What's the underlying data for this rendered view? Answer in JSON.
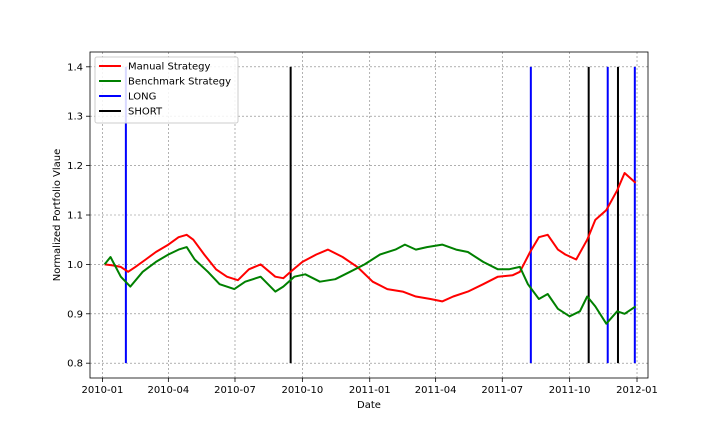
{
  "chart_data": {
    "type": "line",
    "title": "",
    "xlabel": "Date",
    "ylabel": "Normalized Portfolio Vlaue",
    "xlim": [
      "2009-12-15",
      "2012-01-16"
    ],
    "ylim": [
      0.77,
      1.43
    ],
    "xticks": [
      {
        "date": "2010-01-01",
        "label": "2010-01"
      },
      {
        "date": "2010-04-01",
        "label": "2010-04"
      },
      {
        "date": "2010-07-01",
        "label": "2010-07"
      },
      {
        "date": "2010-10-01",
        "label": "2010-10"
      },
      {
        "date": "2011-01-01",
        "label": "2011-01"
      },
      {
        "date": "2011-04-01",
        "label": "2011-04"
      },
      {
        "date": "2011-07-01",
        "label": "2011-07"
      },
      {
        "date": "2011-10-01",
        "label": "2011-10"
      },
      {
        "date": "2012-01-01",
        "label": "2012-01"
      }
    ],
    "yticks": [
      {
        "value": 0.8,
        "label": "0.8"
      },
      {
        "value": 0.9,
        "label": "0.9"
      },
      {
        "value": 1.0,
        "label": "1.0"
      },
      {
        "value": 1.1,
        "label": "1.1"
      },
      {
        "value": 1.2,
        "label": "1.2"
      },
      {
        "value": 1.3,
        "label": "1.3"
      },
      {
        "value": 1.4,
        "label": "1.4"
      }
    ],
    "grid": true,
    "legend_position": "top-left",
    "series": [
      {
        "name": "Manual Strategy",
        "color": "#ff0000",
        "points": [
          [
            "2010-01-04",
            1.0
          ],
          [
            "2010-01-15",
            0.998
          ],
          [
            "2010-01-26",
            0.995
          ],
          [
            "2010-02-05",
            0.985
          ],
          [
            "2010-02-15",
            0.995
          ],
          [
            "2010-03-01",
            1.01
          ],
          [
            "2010-03-15",
            1.025
          ],
          [
            "2010-04-01",
            1.04
          ],
          [
            "2010-04-15",
            1.055
          ],
          [
            "2010-04-26",
            1.06
          ],
          [
            "2010-05-05",
            1.05
          ],
          [
            "2010-05-20",
            1.02
          ],
          [
            "2010-06-05",
            0.99
          ],
          [
            "2010-06-20",
            0.975
          ],
          [
            "2010-07-05",
            0.968
          ],
          [
            "2010-07-20",
            0.99
          ],
          [
            "2010-08-05",
            1.0
          ],
          [
            "2010-08-25",
            0.975
          ],
          [
            "2010-09-05",
            0.972
          ],
          [
            "2010-09-15",
            0.985
          ],
          [
            "2010-10-01",
            1.005
          ],
          [
            "2010-10-20",
            1.02
          ],
          [
            "2010-11-05",
            1.03
          ],
          [
            "2010-11-25",
            1.015
          ],
          [
            "2010-12-15",
            0.995
          ],
          [
            "2011-01-05",
            0.965
          ],
          [
            "2011-01-25",
            0.95
          ],
          [
            "2011-02-15",
            0.945
          ],
          [
            "2011-03-05",
            0.935
          ],
          [
            "2011-03-25",
            0.93
          ],
          [
            "2011-04-10",
            0.925
          ],
          [
            "2011-04-25",
            0.935
          ],
          [
            "2011-05-15",
            0.945
          ],
          [
            "2011-06-05",
            0.96
          ],
          [
            "2011-06-25",
            0.975
          ],
          [
            "2011-07-15",
            0.978
          ],
          [
            "2011-07-25",
            0.985
          ],
          [
            "2011-08-08",
            1.025
          ],
          [
            "2011-08-20",
            1.055
          ],
          [
            "2011-09-01",
            1.06
          ],
          [
            "2011-09-15",
            1.03
          ],
          [
            "2011-09-25",
            1.02
          ],
          [
            "2011-10-10",
            1.01
          ],
          [
            "2011-10-25",
            1.05
          ],
          [
            "2011-11-05",
            1.09
          ],
          [
            "2011-11-20",
            1.11
          ],
          [
            "2011-12-05",
            1.15
          ],
          [
            "2011-12-15",
            1.185
          ],
          [
            "2011-12-30",
            1.165
          ]
        ]
      },
      {
        "name": "Benchmark Strategy",
        "color": "#008000",
        "points": [
          [
            "2010-01-04",
            1.0
          ],
          [
            "2010-01-12",
            1.015
          ],
          [
            "2010-01-26",
            0.975
          ],
          [
            "2010-02-08",
            0.955
          ],
          [
            "2010-02-25",
            0.985
          ],
          [
            "2010-03-15",
            1.005
          ],
          [
            "2010-04-01",
            1.02
          ],
          [
            "2010-04-15",
            1.03
          ],
          [
            "2010-04-26",
            1.035
          ],
          [
            "2010-05-07",
            1.01
          ],
          [
            "2010-05-25",
            0.985
          ],
          [
            "2010-06-10",
            0.96
          ],
          [
            "2010-06-30",
            0.95
          ],
          [
            "2010-07-15",
            0.965
          ],
          [
            "2010-08-05",
            0.975
          ],
          [
            "2010-08-25",
            0.945
          ],
          [
            "2010-09-05",
            0.955
          ],
          [
            "2010-09-20",
            0.975
          ],
          [
            "2010-10-05",
            0.98
          ],
          [
            "2010-10-25",
            0.965
          ],
          [
            "2010-11-15",
            0.97
          ],
          [
            "2010-12-05",
            0.985
          ],
          [
            "2010-12-25",
            1.0
          ],
          [
            "2011-01-15",
            1.02
          ],
          [
            "2011-02-05",
            1.03
          ],
          [
            "2011-02-18",
            1.04
          ],
          [
            "2011-03-05",
            1.03
          ],
          [
            "2011-03-20",
            1.035
          ],
          [
            "2011-04-10",
            1.04
          ],
          [
            "2011-04-29",
            1.03
          ],
          [
            "2011-05-15",
            1.025
          ],
          [
            "2011-06-05",
            1.005
          ],
          [
            "2011-06-25",
            0.99
          ],
          [
            "2011-07-10",
            0.99
          ],
          [
            "2011-07-25",
            0.995
          ],
          [
            "2011-08-05",
            0.96
          ],
          [
            "2011-08-20",
            0.93
          ],
          [
            "2011-09-01",
            0.94
          ],
          [
            "2011-09-15",
            0.91
          ],
          [
            "2011-10-01",
            0.895
          ],
          [
            "2011-10-15",
            0.905
          ],
          [
            "2011-10-25",
            0.935
          ],
          [
            "2011-11-05",
            0.915
          ],
          [
            "2011-11-20",
            0.88
          ],
          [
            "2011-12-05",
            0.905
          ],
          [
            "2011-12-15",
            0.9
          ],
          [
            "2011-12-30",
            0.915
          ]
        ]
      }
    ],
    "vlines": [
      {
        "name": "LONG",
        "color": "#0000ff",
        "dates": [
          "2010-02-02",
          "2011-08-09",
          "2011-11-22",
          "2011-12-29"
        ],
        "ymin": 0.8,
        "ymax": 1.4
      },
      {
        "name": "SHORT",
        "color": "#000000",
        "dates": [
          "2010-09-15",
          "2011-10-27",
          "2011-12-06"
        ],
        "ymin": 0.8,
        "ymax": 1.4
      }
    ],
    "legend": [
      {
        "label": "Manual Strategy",
        "color": "#ff0000"
      },
      {
        "label": "Benchmark Strategy",
        "color": "#008000"
      },
      {
        "label": "LONG",
        "color": "#0000ff"
      },
      {
        "label": "SHORT",
        "color": "#000000"
      }
    ]
  }
}
